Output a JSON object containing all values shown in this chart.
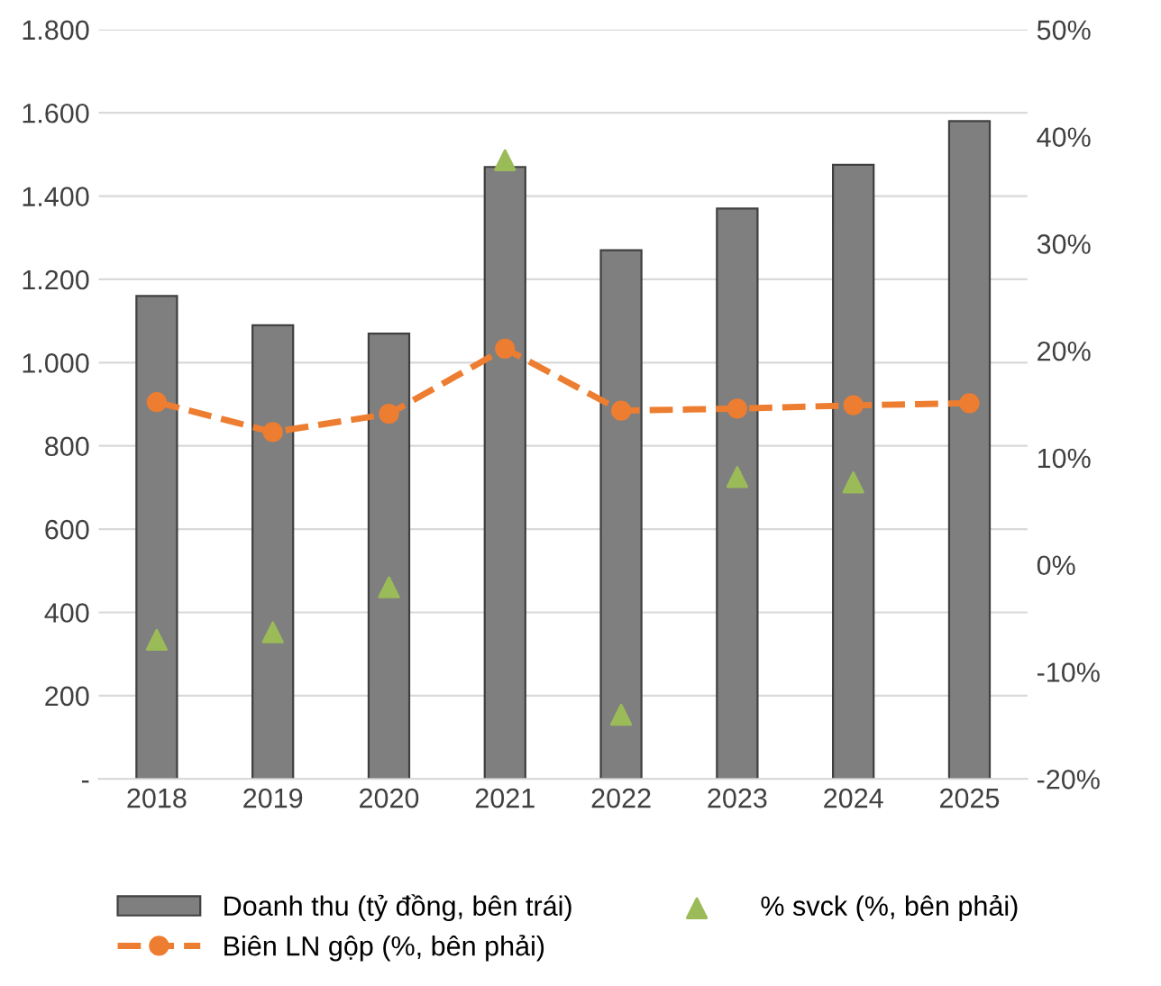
{
  "chart_data": {
    "type": "bar",
    "categories": [
      "2018",
      "2019",
      "2020",
      "2021",
      "2022",
      "2023",
      "2024",
      "2025"
    ],
    "series": [
      {
        "name": "Doanh thu (tỷ đồng, bên trái)",
        "color": "#7f7f7f",
        "values": [
          1160,
          1090,
          1070,
          1470,
          1270,
          1370,
          1475,
          1580
        ]
      },
      {
        "name": "% svck (%, bên phải)",
        "type": "scatter",
        "axis": "y2",
        "marker": "triangle",
        "color": "#9bbb59",
        "values": [
          -7.0,
          -6.3,
          -2.1,
          37.8,
          -14.0,
          8.2,
          7.7,
          null
        ]
      },
      {
        "name": "Biên LN gộp (%, bên phải)",
        "type": "line",
        "axis": "y2",
        "marker": "circle",
        "line_style": "dashed",
        "color": "#ed7d31",
        "values": [
          15.2,
          12.4,
          14.1,
          20.2,
          14.4,
          14.6,
          14.9,
          15.1
        ]
      }
    ],
    "ylim": [
      0,
      1800
    ],
    "yticks": [
      {
        "value": 0,
        "label": "-"
      },
      {
        "value": 200,
        "label": "200"
      },
      {
        "value": 400,
        "label": "400"
      },
      {
        "value": 600,
        "label": "600"
      },
      {
        "value": 800,
        "label": "800"
      },
      {
        "value": 1000,
        "label": "1.000"
      },
      {
        "value": 1200,
        "label": "1.200"
      },
      {
        "value": 1400,
        "label": "1.400"
      },
      {
        "value": 1600,
        "label": "1.600"
      },
      {
        "value": 1800,
        "label": "1.800"
      }
    ],
    "y2lim": [
      -20,
      50
    ],
    "y2ticks": [
      {
        "value": -20,
        "label": "-20%"
      },
      {
        "value": -10,
        "label": "-10%"
      },
      {
        "value": 0,
        "label": "0%"
      },
      {
        "value": 10,
        "label": "10%"
      },
      {
        "value": 20,
        "label": "20%"
      },
      {
        "value": 30,
        "label": "30%"
      },
      {
        "value": 40,
        "label": "40%"
      },
      {
        "value": 50,
        "label": "50%"
      }
    ],
    "grid": "y",
    "legend": "bottom"
  }
}
